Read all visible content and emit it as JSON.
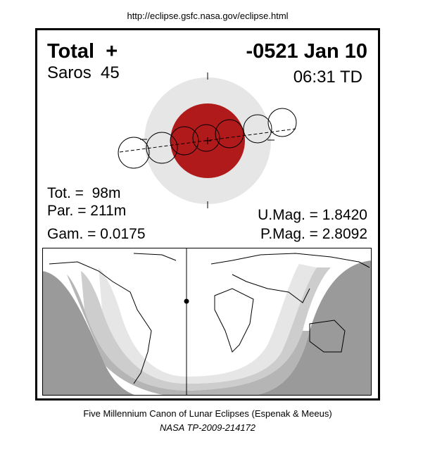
{
  "header": {
    "url": "http://eclipse.gsfc.nasa.gov/eclipse.html"
  },
  "eclipse": {
    "type": "Total  +",
    "date": "-0521 Jan 10",
    "saros": "Saros  45",
    "time": "06:31 TD"
  },
  "stats": {
    "tot": "Tot. =  98m",
    "par": "Par. = 211m",
    "gam": "Gam. = 0.0175",
    "umag": "U.Mag. = 1.8420",
    "pmag": "P.Mag. = 2.8092"
  },
  "footer": {
    "line1": "Five Millennium Canon of Lunar Eclipses (Espenak & Meeus)",
    "line2": "NASA TP-2009-214172"
  }
}
